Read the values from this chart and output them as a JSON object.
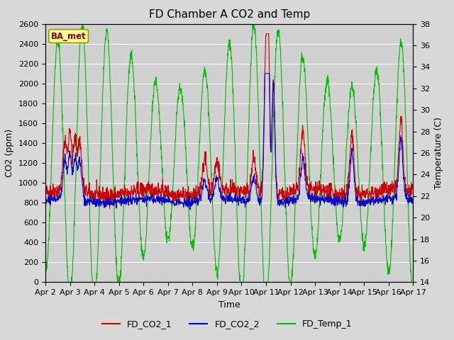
{
  "title": "FD Chamber A CO2 and Temp",
  "xlabel": "Time",
  "ylabel_left": "CO2 (ppm)",
  "ylabel_right": "Temperature (C)",
  "co2_ylim": [
    0,
    2600
  ],
  "temp_ylim": [
    14,
    38
  ],
  "co2_yticks": [
    0,
    200,
    400,
    600,
    800,
    1000,
    1200,
    1400,
    1600,
    1800,
    2000,
    2200,
    2400,
    2600
  ],
  "temp_yticks": [
    14,
    16,
    18,
    20,
    22,
    24,
    26,
    28,
    30,
    32,
    34,
    36,
    38
  ],
  "xtick_labels": [
    "Apr 2",
    "Apr 3",
    "Apr 4",
    "Apr 5",
    "Apr 6",
    "Apr 7",
    "Apr 8",
    "Apr 9",
    "Apr 10",
    "Apr 11",
    "Apr 12",
    "Apr 13",
    "Apr 14",
    "Apr 15",
    "Apr 16",
    "Apr 17"
  ],
  "color_co2_1": "#cc0000",
  "color_co2_2": "#0000cc",
  "color_temp": "#00bb00",
  "legend_label_1": "FD_CO2_1",
  "legend_label_2": "FD_CO2_2",
  "legend_label_3": "FD_Temp_1",
  "watermark_text": "BA_met",
  "bg_color": "#d8d8d8",
  "plot_bg_color": "#d0d0d0",
  "grid_color": "#ffffff",
  "title_fontsize": 11,
  "axis_label_fontsize": 9,
  "tick_fontsize": 8,
  "legend_fontsize": 9,
  "line_width": 0.8,
  "n_points": 1500
}
